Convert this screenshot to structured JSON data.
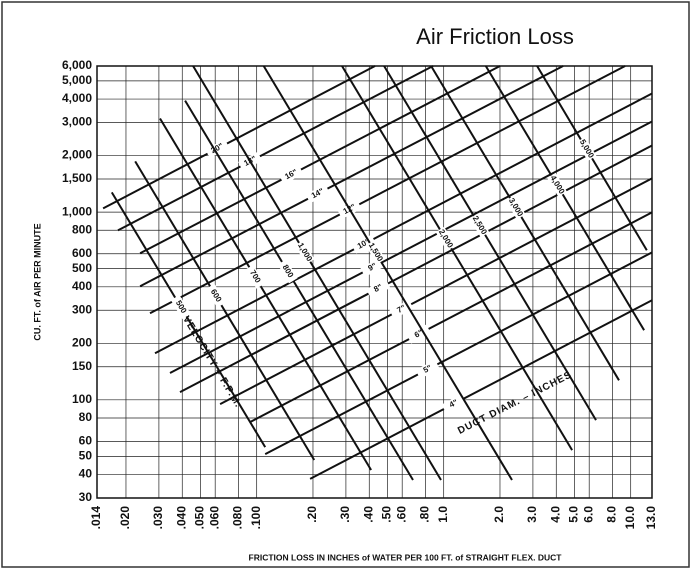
{
  "chart_data": {
    "type": "line",
    "title": "Air Friction Loss",
    "x_label": "FRICTION LOSS IN INCHES of WATER PER 100 FT. of STRAIGHT FLEX. DUCT",
    "y_label": "CU. FT. of AIR PER MINUTE",
    "annotations": [
      "VELOCITY – F.P.M.",
      "DUCT DIAM. – INCHES"
    ],
    "x_scale": "log",
    "y_scale": "log",
    "grid": true,
    "xlim": [
      0.014,
      13
    ],
    "ylim": [
      30,
      6000
    ],
    "xticks": [
      {
        "value": 0.014,
        "label": ".014"
      },
      {
        "value": 0.02,
        "label": ".020"
      },
      {
        "value": 0.03,
        "label": ".030"
      },
      {
        "value": 0.04,
        "label": ".040"
      },
      {
        "value": 0.05,
        "label": ".050"
      },
      {
        "value": 0.06,
        "label": ".060"
      },
      {
        "value": 0.08,
        "label": ".080"
      },
      {
        "value": 0.1,
        "label": ".100"
      },
      {
        "value": 0.2,
        "label": ".20"
      },
      {
        "value": 0.3,
        "label": ".30"
      },
      {
        "value": 0.4,
        "label": ".40"
      },
      {
        "value": 0.5,
        "label": ".50"
      },
      {
        "value": 0.6,
        "label": ".60"
      },
      {
        "value": 0.8,
        "label": ".80"
      },
      {
        "value": 1,
        "label": "1.0"
      },
      {
        "value": 2,
        "label": "2.0"
      },
      {
        "value": 3,
        "label": "3.0"
      },
      {
        "value": 4,
        "label": "4.0"
      },
      {
        "value": 5,
        "label": "5.0"
      },
      {
        "value": 6,
        "label": "6.0"
      },
      {
        "value": 8,
        "label": "8.0"
      },
      {
        "value": 10,
        "label": "10.0"
      },
      {
        "value": 13,
        "label": "13.0"
      }
    ],
    "yticks": [
      30,
      40,
      50,
      60,
      80,
      100,
      150,
      200,
      300,
      400,
      500,
      600,
      800,
      {
        "value": 1000,
        "label": "1,000"
      },
      {
        "value": 1500,
        "label": "1,500"
      },
      {
        "value": 2000,
        "label": "2,000"
      },
      {
        "value": 3000,
        "label": "3,000"
      },
      {
        "value": 4000,
        "label": "4,000"
      },
      {
        "value": 5000,
        "label": "5,000"
      },
      {
        "value": 6000,
        "label": "6,000"
      }
    ],
    "series": [
      {
        "name": "20\"",
        "group": "duct",
        "color": "#111111",
        "x": [
          0.0151,
          0.429
        ],
        "values": [
          1046,
          6000
        ]
      },
      {
        "name": "18\"",
        "group": "duct",
        "color": "#111111",
        "x": [
          0.0181,
          0.877
        ],
        "values": [
          799,
          6000
        ]
      },
      {
        "name": "16\"",
        "group": "duct",
        "color": "#111111",
        "x": [
          0.0238,
          2.0
        ],
        "values": [
          603,
          6000
        ]
      },
      {
        "name": "14\"",
        "group": "duct",
        "color": "#111111",
        "x": [
          0.0238,
          4.35
        ],
        "values": [
          403,
          6000
        ]
      },
      {
        "name": "12\"",
        "group": "duct",
        "color": "#111111",
        "x": [
          0.0269,
          9.33
        ],
        "values": [
          289,
          6000
        ]
      },
      {
        "name": "10\"",
        "group": "duct",
        "color": "#111111",
        "x": [
          0.0286,
          13
        ],
        "values": [
          177,
          4281
        ]
      },
      {
        "name": "9\"",
        "group": "duct",
        "color": "#111111",
        "x": [
          0.0344,
          13
        ],
        "values": [
          139,
          3037
        ]
      },
      {
        "name": "8\"",
        "group": "duct",
        "color": "#111111",
        "x": [
          0.0389,
          13
        ],
        "values": [
          110,
          2263
        ]
      },
      {
        "name": "7\"",
        "group": "duct",
        "color": "#111111",
        "x": [
          0.0637,
          13
        ],
        "values": [
          94.9,
          1511
        ]
      },
      {
        "name": "6\"",
        "group": "duct",
        "color": "#111111",
        "x": [
          0.0921,
          13
        ],
        "values": [
          76.1,
          996
        ]
      },
      {
        "name": "5\"",
        "group": "duct",
        "color": "#111111",
        "x": [
          0.111,
          13
        ],
        "values": [
          51.4,
          610
        ]
      },
      {
        "name": "4\"",
        "group": "duct",
        "color": "#111111",
        "x": [
          0.193,
          13
        ],
        "values": [
          37.9,
          339
        ]
      },
      {
        "name": "500",
        "group": "velocity",
        "color": "#111111",
        "x": [
          0.0168,
          0.111
        ],
        "values": [
          1273,
          56.0
        ]
      },
      {
        "name": "600",
        "group": "velocity",
        "color": "#111111",
        "x": [
          0.0224,
          0.203
        ],
        "values": [
          1861,
          47.8
        ]
      },
      {
        "name": "700",
        "group": "velocity",
        "color": "#111111",
        "x": [
          0.0304,
          0.409
        ],
        "values": [
          3150,
          42.3
        ]
      },
      {
        "name": "800",
        "group": "velocity",
        "color": "#111111",
        "x": [
          0.0414,
          0.685
        ],
        "values": [
          3927,
          37.4
        ]
      },
      {
        "name": "1,000",
        "group": "velocity",
        "color": "#111111",
        "x": [
          0.0457,
          0.968
        ],
        "values": [
          6000,
          37.4
        ]
      },
      {
        "name": "1,500",
        "group": "velocity",
        "color": "#111111",
        "x": [
          0.109,
          2.32
        ],
        "values": [
          6000,
          37.4
        ]
      },
      {
        "name": "2,000",
        "group": "velocity",
        "color": "#111111",
        "x": [
          0.286,
          4.86
        ],
        "values": [
          6000,
          54.0
        ]
      },
      {
        "name": "2,500",
        "group": "velocity",
        "color": "#111111",
        "x": [
          0.48,
          6.52
        ],
        "values": [
          6000,
          78.0
        ]
      },
      {
        "name": "3,000",
        "group": "velocity",
        "color": "#111111",
        "x": [
          0.856,
          8.66
        ],
        "values": [
          6000,
          127
        ]
      },
      {
        "name": "4,000",
        "group": "velocity",
        "color": "#111111",
        "x": [
          1.68,
          11.8
        ],
        "values": [
          6000,
          235
        ]
      },
      {
        "name": "5,000",
        "group": "velocity",
        "color": "#111111",
        "x": [
          3.16,
          12.2
        ],
        "values": [
          6000,
          626
        ]
      }
    ]
  }
}
